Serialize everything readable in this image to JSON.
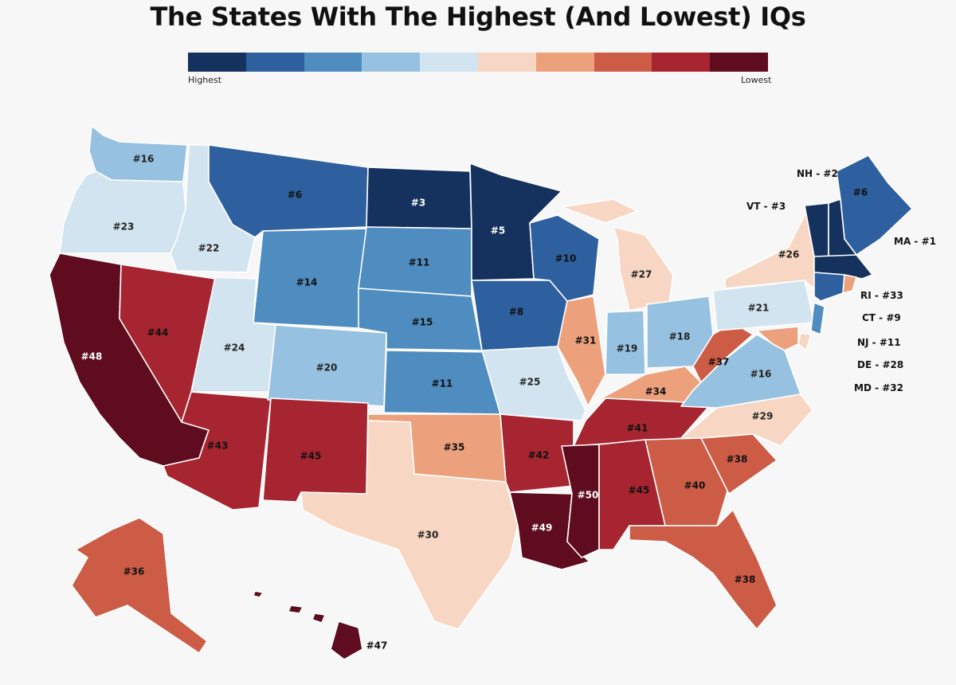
{
  "title": "The States With The Highest (And Lowest) IQs",
  "legend": {
    "low_label": "Highest",
    "high_label": "Lowest",
    "colors": [
      "#15315e",
      "#2e5f9e",
      "#4f8cc0",
      "#97c1e0",
      "#d3e4f1",
      "#f7d6c3",
      "#eca17c",
      "#cd5c47",
      "#a72530",
      "#5e0c1e"
    ]
  },
  "states": [
    {
      "id": "WA",
      "label": "#16",
      "color": "#97c1e0",
      "text": "#222"
    },
    {
      "id": "OR",
      "label": "#23",
      "color": "#d3e4f1",
      "text": "#222"
    },
    {
      "id": "CA",
      "label": "#48",
      "color": "#5e0c1e",
      "text": "#fff"
    },
    {
      "id": "ID",
      "label": "#22",
      "color": "#d3e4f1",
      "text": "#222"
    },
    {
      "id": "NV",
      "label": "#44",
      "color": "#a72530",
      "text": "#111"
    },
    {
      "id": "MT",
      "label": "#6",
      "color": "#2e5f9e",
      "text": "#111"
    },
    {
      "id": "WY",
      "label": "#14",
      "color": "#4f8cc0",
      "text": "#111"
    },
    {
      "id": "UT",
      "label": "#24",
      "color": "#d3e4f1",
      "text": "#222"
    },
    {
      "id": "AZ",
      "label": "#43",
      "color": "#a72530",
      "text": "#111"
    },
    {
      "id": "CO",
      "label": "#20",
      "color": "#97c1e0",
      "text": "#222"
    },
    {
      "id": "NM",
      "label": "#45",
      "color": "#a72530",
      "text": "#111"
    },
    {
      "id": "ND",
      "label": "#3",
      "color": "#15315e",
      "text": "#fff"
    },
    {
      "id": "SD",
      "label": "#11",
      "color": "#4f8cc0",
      "text": "#111"
    },
    {
      "id": "NE",
      "label": "#15",
      "color": "#4f8cc0",
      "text": "#111"
    },
    {
      "id": "KS",
      "label": "#11",
      "color": "#4f8cc0",
      "text": "#111"
    },
    {
      "id": "OK",
      "label": "#35",
      "color": "#eca17c",
      "text": "#111"
    },
    {
      "id": "TX",
      "label": "#30",
      "color": "#f7d6c3",
      "text": "#222"
    },
    {
      "id": "MN",
      "label": "#5",
      "color": "#15315e",
      "text": "#fff"
    },
    {
      "id": "IA",
      "label": "#8",
      "color": "#2e5f9e",
      "text": "#111"
    },
    {
      "id": "MO",
      "label": "#25",
      "color": "#d3e4f1",
      "text": "#222"
    },
    {
      "id": "AR",
      "label": "#42",
      "color": "#a72530",
      "text": "#111"
    },
    {
      "id": "LA",
      "label": "#49",
      "color": "#5e0c1e",
      "text": "#fff"
    },
    {
      "id": "WI",
      "label": "#10",
      "color": "#2e5f9e",
      "text": "#111"
    },
    {
      "id": "IL",
      "label": "#31",
      "color": "#eca17c",
      "text": "#111"
    },
    {
      "id": "MI",
      "label": "#27",
      "color": "#f7d6c3",
      "text": "#222"
    },
    {
      "id": "IN",
      "label": "#19",
      "color": "#97c1e0",
      "text": "#222"
    },
    {
      "id": "OH",
      "label": "#18",
      "color": "#97c1e0",
      "text": "#222"
    },
    {
      "id": "KY",
      "label": "#34",
      "color": "#eca17c",
      "text": "#111"
    },
    {
      "id": "TN",
      "label": "#41",
      "color": "#a72530",
      "text": "#111"
    },
    {
      "id": "MS",
      "label": "#50",
      "color": "#5e0c1e",
      "text": "#fff"
    },
    {
      "id": "AL",
      "label": "#45",
      "color": "#a72530",
      "text": "#111"
    },
    {
      "id": "GA",
      "label": "#40",
      "color": "#cd5c47",
      "text": "#111"
    },
    {
      "id": "FL",
      "label": "#38",
      "color": "#cd5c47",
      "text": "#111"
    },
    {
      "id": "SC",
      "label": "#38",
      "color": "#cd5c47",
      "text": "#111"
    },
    {
      "id": "NC",
      "label": "#29",
      "color": "#f7d6c3",
      "text": "#222"
    },
    {
      "id": "VA",
      "label": "#16",
      "color": "#97c1e0",
      "text": "#222"
    },
    {
      "id": "WV",
      "label": "#37",
      "color": "#cd5c47",
      "text": "#111"
    },
    {
      "id": "PA",
      "label": "#21",
      "color": "#d3e4f1",
      "text": "#222"
    },
    {
      "id": "NY",
      "label": "#26",
      "color": "#f7d6c3",
      "text": "#222"
    },
    {
      "id": "ME",
      "label": "#6",
      "color": "#2e5f9e",
      "text": "#111"
    },
    {
      "id": "AK",
      "label": "#36",
      "color": "#cd5c47",
      "text": "#111"
    },
    {
      "id": "HI",
      "label": "#47",
      "color": "#5e0c1e",
      "text": "#111"
    },
    {
      "id": "VT",
      "label": "",
      "color": "#15315e",
      "text": "#fff"
    },
    {
      "id": "NH",
      "label": "",
      "color": "#15315e",
      "text": "#fff"
    },
    {
      "id": "MA",
      "label": "",
      "color": "#15315e",
      "text": "#fff"
    },
    {
      "id": "CT",
      "label": "",
      "color": "#2e5f9e",
      "text": "#fff"
    },
    {
      "id": "RI",
      "label": "",
      "color": "#eca17c",
      "text": "#fff"
    },
    {
      "id": "NJ",
      "label": "",
      "color": "#4f8cc0",
      "text": "#fff"
    },
    {
      "id": "DE",
      "label": "",
      "color": "#f7d6c3",
      "text": "#fff"
    },
    {
      "id": "MD",
      "label": "",
      "color": "#eca17c",
      "text": "#fff"
    }
  ],
  "callouts": {
    "nh": "NH - #2",
    "vt": "VT - #3",
    "ma": "MA - #1",
    "ri": "RI - #33",
    "ct": "CT - #9",
    "nj": "NJ - #11",
    "de": "DE - #28",
    "md": "MD - #32"
  }
}
